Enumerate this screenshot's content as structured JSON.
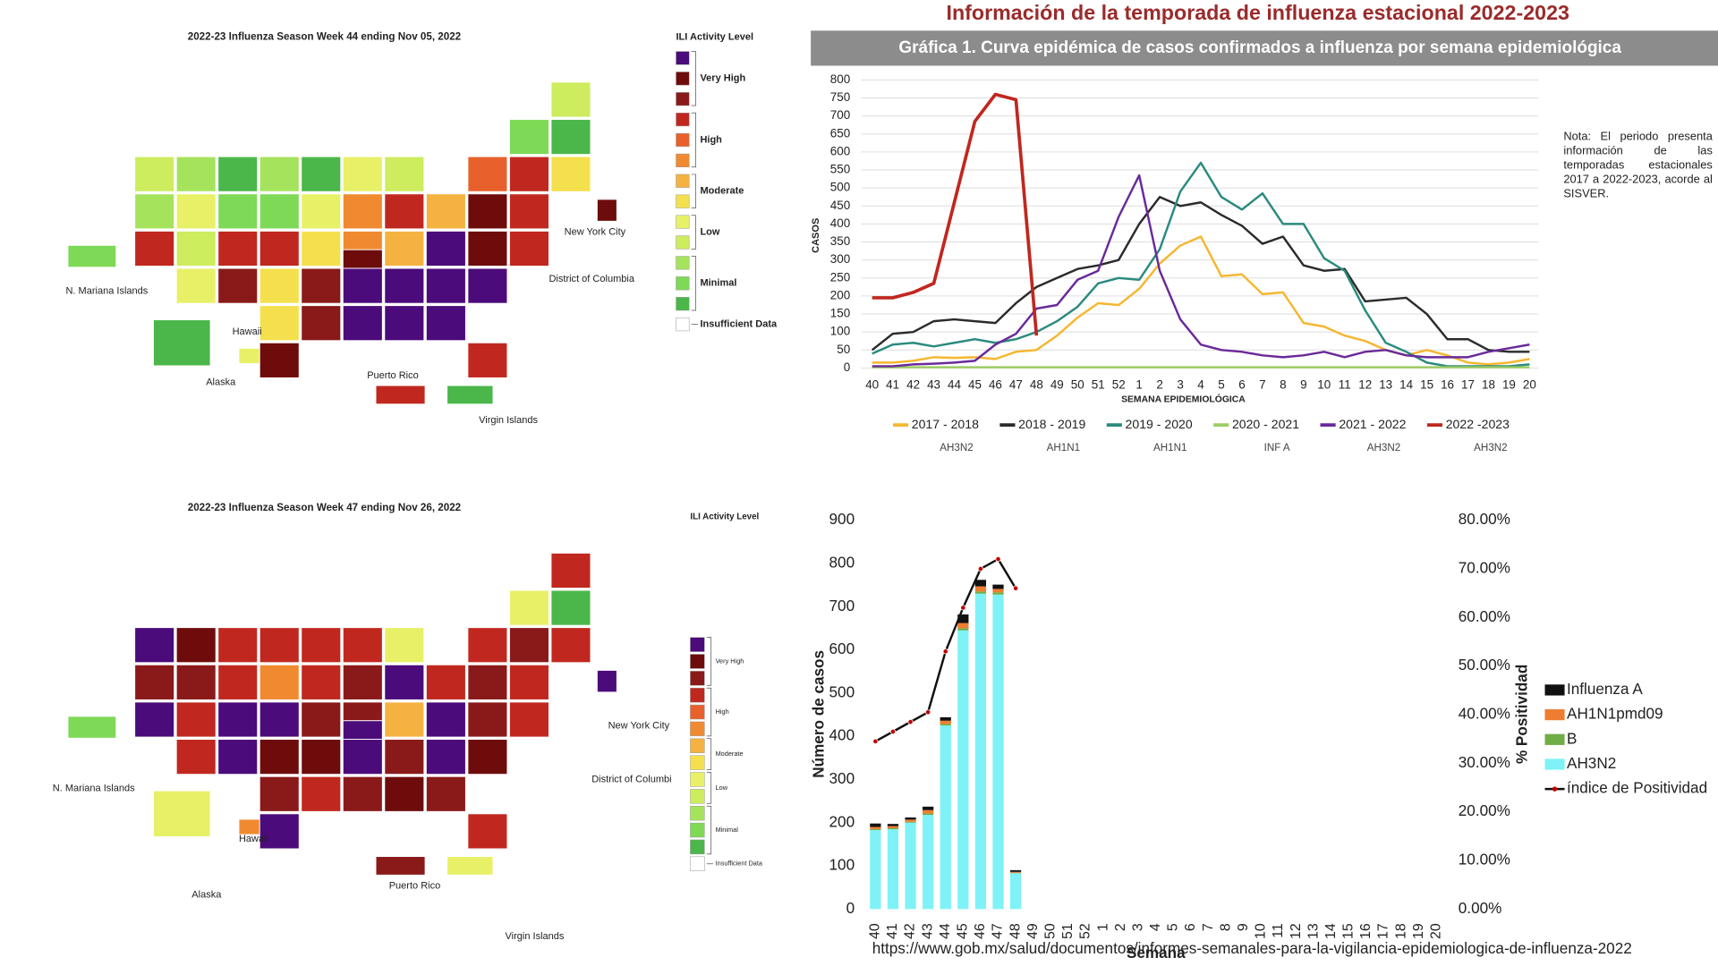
{
  "header": {
    "title": "Información de la temporada de influenza estacional 2022-2023",
    "url": "https://www.gob.mx/salud/documentos/informes-semanales-para-la-vigilancia-epidemiologica-de-influenza-2022"
  },
  "maps": [
    {
      "title": "2022-23 Influenza Season Week 44 ending Nov 05, 2022",
      "legend": {
        "title": "ILI Activity Level",
        "levels": [
          {
            "label": "Very High",
            "colors": [
              "#4b0b7a",
              "#6e0c0c",
              "#8a1a1a"
            ]
          },
          {
            "label": "High",
            "colors": [
              "#c0281f",
              "#e8612c",
              "#f08a30"
            ]
          },
          {
            "label": "Moderate",
            "colors": [
              "#f5b240",
              "#f4e04d"
            ]
          },
          {
            "label": "Low",
            "colors": [
              "#e8f067",
              "#cdec5e"
            ]
          },
          {
            "label": "Minimal",
            "colors": [
              "#a6e35d",
              "#7ed957",
              "#4bb74a"
            ]
          }
        ],
        "insufficient": {
          "label": "Insufficient Data",
          "color": "#ffffff"
        }
      },
      "labels": [
        "N. Mariana Islands",
        "Hawaii",
        "Alaska",
        "Puerto Rico",
        "Virgin Islands",
        "New York City",
        "District of Columbia"
      ],
      "state_colors": [
        "#4bb74a",
        "#e8f067",
        "#cdec5e",
        "#a6e35d",
        "#c0281f",
        "#e8f067",
        "#a6e35d",
        "#4bb74a",
        "#7ed957",
        "#cdec5e",
        "#e8f067",
        "#c0281f",
        "#8a1a1a",
        "#a6e35d",
        "#7ed957",
        "#c0281f",
        "#f4e04d",
        "#f4e04d",
        "#6e0c0c",
        "#4bb74a",
        "#e8f067",
        "#f4e04d",
        "#8a1a1a",
        "#8a1a1a",
        "#e8f067",
        "#f08a30",
        "#f08a30",
        "#cdec5e",
        "#c0281f",
        "#6e0c0c",
        "#4b0b7a",
        "#4b0b7a",
        "#4b0b7a",
        "#4b0b7a",
        "#c0281f",
        "#4b0b7a",
        "#4b0b7a",
        "#4b0b7a",
        "#f5b240",
        "#f5b240",
        "#e8612c",
        "#7ed957",
        "#4bb74a",
        "#cdec5e",
        "#f4e04d",
        "#c0281f",
        "#c0281f",
        "#6e0c0c",
        "#c0281f",
        "#6e0c0c",
        "#4b0b7a",
        "#c0281f",
        "#4bb74a",
        "#7ed957",
        "#6e0c0c"
      ]
    },
    {
      "title": "2022-23 Influenza Season Week 47 ending Nov 26, 2022",
      "legend": {
        "title": "ILI Activity Level",
        "levels": [
          {
            "label": "Very High",
            "colors": [
              "#4b0b7a",
              "#6e0c0c",
              "#8a1a1a"
            ]
          },
          {
            "label": "High",
            "colors": [
              "#c0281f",
              "#e8612c",
              "#f08a30"
            ]
          },
          {
            "label": "Moderate",
            "colors": [
              "#f5b240",
              "#f4e04d"
            ]
          },
          {
            "label": "Low",
            "colors": [
              "#e8f067",
              "#cdec5e"
            ]
          },
          {
            "label": "Minimal",
            "colors": [
              "#a6e35d",
              "#7ed957",
              "#4bb74a"
            ]
          }
        ],
        "insufficient": {
          "label": "Insufficient Data",
          "color": "#ffffff"
        }
      },
      "labels": [
        "N. Mariana Islands",
        "Hawaii",
        "Alaska",
        "Puerto Rico",
        "Virgin Islands",
        "New York City",
        "District of Columbi"
      ],
      "state_colors": [
        "#e8f067",
        "#f08a30",
        "#4b0b7a",
        "#8a1a1a",
        "#4b0b7a",
        "#8a1a1a",
        "#6e0c0c",
        "#c0281f",
        "#c0281f",
        "#c0281f",
        "#c0281f",
        "#4b0b7a",
        "#4b0b7a",
        "#c0281f",
        "#f08a30",
        "#4b0b7a",
        "#6e0c0c",
        "#8a1a1a",
        "#4b0b7a",
        "#c0281f",
        "#c0281f",
        "#8a1a1a",
        "#6e0c0c",
        "#c0281f",
        "#c0281f",
        "#8a1a1a",
        "#8a1a1a",
        "#e8f067",
        "#4b0b7a",
        "#4b0b7a",
        "#4b0b7a",
        "#8a1a1a",
        "#6e0c0c",
        "#8a1a1a",
        "#c0281f",
        "#4b0b7a",
        "#8a1a1a",
        "#4b0b7a",
        "#f5b240",
        "#c0281f",
        "#c0281f",
        "#e8f067",
        "#4bb74a",
        "#c0281f",
        "#c0281f",
        "#8a1a1a",
        "#c0281f",
        "#8a1a1a",
        "#c0281f",
        "#8a1a1a",
        "#6e0c0c",
        "#8a1a1a",
        "#e8f067",
        "#7ed957",
        "#4b0b7a"
      ]
    }
  ],
  "chart_data": [
    {
      "type": "line",
      "title": "Gráfica 1. Curva epidémica de casos confirmados a influenza por semana epidemiológica",
      "ylabel": "CASOS",
      "xlabel": "SEMANA EPIDEMIOLÓGICA",
      "note": "Nota: El periodo presenta información de las temporadas estacionales 2017 a 2022-2023, acorde al SISVER.",
      "grid": true,
      "categories": [
        "40",
        "41",
        "42",
        "43",
        "44",
        "45",
        "46",
        "47",
        "48",
        "49",
        "50",
        "51",
        "52",
        "1",
        "2",
        "3",
        "4",
        "5",
        "6",
        "7",
        "8",
        "9",
        "10",
        "11",
        "12",
        "13",
        "14",
        "15",
        "16",
        "17",
        "18",
        "19",
        "20"
      ],
      "ylim": [
        0,
        800
      ],
      "yticks": [
        0,
        50,
        100,
        150,
        200,
        250,
        300,
        350,
        400,
        450,
        500,
        550,
        600,
        650,
        700,
        750,
        800
      ],
      "series": [
        {
          "name": "2017 - 2018",
          "subtype": "AH3N2",
          "color": "#f5b730",
          "values": [
            15,
            15,
            20,
            30,
            28,
            30,
            25,
            45,
            50,
            90,
            140,
            180,
            175,
            220,
            290,
            340,
            365,
            255,
            260,
            205,
            210,
            125,
            115,
            90,
            75,
            50,
            35,
            50,
            35,
            15,
            10,
            15,
            25
          ]
        },
        {
          "name": "2018 - 2019",
          "subtype": "AH1N1",
          "color": "#2b2b2b",
          "values": [
            50,
            95,
            100,
            130,
            135,
            130,
            125,
            180,
            225,
            250,
            275,
            285,
            300,
            400,
            475,
            450,
            460,
            425,
            395,
            345,
            365,
            285,
            270,
            275,
            185,
            190,
            195,
            150,
            80,
            80,
            50,
            45,
            45
          ]
        },
        {
          "name": "2019 - 2020",
          "subtype": "AH1N1",
          "color": "#2a8a7e",
          "values": [
            40,
            65,
            70,
            60,
            70,
            80,
            70,
            80,
            100,
            130,
            170,
            235,
            250,
            245,
            330,
            490,
            570,
            475,
            440,
            485,
            400,
            400,
            305,
            270,
            160,
            70,
            45,
            15,
            5,
            5,
            5,
            5,
            10
          ]
        },
        {
          "name": "2020 - 2021",
          "subtype": "INF A",
          "color": "#9ccc65",
          "values": [
            2,
            2,
            2,
            2,
            2,
            2,
            2,
            2,
            2,
            2,
            2,
            2,
            2,
            2,
            2,
            2,
            2,
            2,
            2,
            2,
            2,
            2,
            2,
            2,
            2,
            2,
            2,
            2,
            2,
            2,
            2,
            2,
            2
          ]
        },
        {
          "name": "2021 - 2022",
          "subtype": "AH3N2",
          "color": "#6a2a9a",
          "values": [
            5,
            5,
            10,
            12,
            15,
            20,
            65,
            95,
            165,
            175,
            245,
            270,
            420,
            535,
            270,
            135,
            65,
            50,
            45,
            35,
            30,
            35,
            45,
            30,
            45,
            50,
            35,
            30,
            30,
            30,
            45,
            55,
            65
          ]
        },
        {
          "name": "2022 -2023",
          "subtype": "AH3N2",
          "color": "#c0271f",
          "values": [
            195,
            195,
            210,
            235,
            460,
            685,
            760,
            745,
            90,
            null,
            null,
            null,
            null,
            null,
            null,
            null,
            null,
            null,
            null,
            null,
            null,
            null,
            null,
            null,
            null,
            null,
            null,
            null,
            null,
            null,
            null,
            null,
            null
          ]
        }
      ]
    },
    {
      "type": "stacked_bar",
      "ylabel": "Número de casos",
      "y2label": "% Positividad",
      "xlabel": "Semana",
      "legend": "right",
      "categories": [
        "40",
        "41",
        "42",
        "43",
        "44",
        "45",
        "46",
        "47",
        "48",
        "49",
        "50",
        "51",
        "52",
        "1",
        "2",
        "3",
        "4",
        "5",
        "6",
        "7",
        "8",
        "9",
        "10",
        "11",
        "12",
        "13",
        "14",
        "15",
        "16",
        "17",
        "18",
        "19",
        "20"
      ],
      "ylim": [
        0,
        900
      ],
      "yticks": [
        0,
        100,
        200,
        300,
        400,
        500,
        600,
        700,
        800,
        900
      ],
      "y2lim": [
        0,
        80
      ],
      "y2ticks": [
        {
          "value": 0,
          "label": "0.00%"
        },
        {
          "value": 10,
          "label": "10.00%"
        },
        {
          "value": 20,
          "label": "20.00%"
        },
        {
          "value": 30,
          "label": "30.00%"
        },
        {
          "value": 40,
          "label": "40.00%"
        },
        {
          "value": 50,
          "label": "50.00%"
        },
        {
          "value": 60,
          "label": "60.00%"
        },
        {
          "value": 70,
          "label": "70.00%"
        },
        {
          "value": 80,
          "label": "80.00%"
        }
      ],
      "series": [
        {
          "name": "Influenza A",
          "color": "#111111",
          "values": [
            8,
            5,
            5,
            8,
            8,
            20,
            15,
            10,
            4,
            null,
            null,
            null,
            null,
            null,
            null,
            null,
            null,
            null,
            null,
            null,
            null,
            null,
            null,
            null,
            null,
            null,
            null,
            null,
            null,
            null,
            null,
            null,
            null
          ]
        },
        {
          "name": "AH1N1pmd09",
          "color": "#ed7d31",
          "values": [
            5,
            5,
            5,
            8,
            8,
            12,
            12,
            8,
            2,
            null,
            null,
            null,
            null,
            null,
            null,
            null,
            null,
            null,
            null,
            null,
            null,
            null,
            null,
            null,
            null,
            null,
            null,
            null,
            null,
            null,
            null,
            null,
            null
          ]
        },
        {
          "name": "B",
          "color": "#70ad47",
          "values": [
            2,
            2,
            2,
            3,
            3,
            5,
            5,
            5,
            1,
            null,
            null,
            null,
            null,
            null,
            null,
            null,
            null,
            null,
            null,
            null,
            null,
            null,
            null,
            null,
            null,
            null,
            null,
            null,
            null,
            null,
            null,
            null,
            null
          ]
        },
        {
          "name": "AH3N2",
          "color": "#7ff2f7",
          "values": [
            183,
            185,
            200,
            218,
            425,
            645,
            730,
            728,
            83,
            null,
            null,
            null,
            null,
            null,
            null,
            null,
            null,
            null,
            null,
            null,
            null,
            null,
            null,
            null,
            null,
            null,
            null,
            null,
            null,
            null,
            null,
            null,
            null
          ]
        },
        {
          "name": "índice de Positividad",
          "type": "line",
          "axis": "y2",
          "color": "#111111",
          "marker_color": "#c00000",
          "values": [
            34.5,
            36.5,
            38.5,
            40.5,
            53,
            62,
            70,
            72,
            66,
            null,
            null,
            null,
            null,
            null,
            null,
            null,
            null,
            null,
            null,
            null,
            null,
            null,
            null,
            null,
            null,
            null,
            null,
            null,
            null,
            null,
            null,
            null,
            null
          ]
        }
      ]
    }
  ]
}
